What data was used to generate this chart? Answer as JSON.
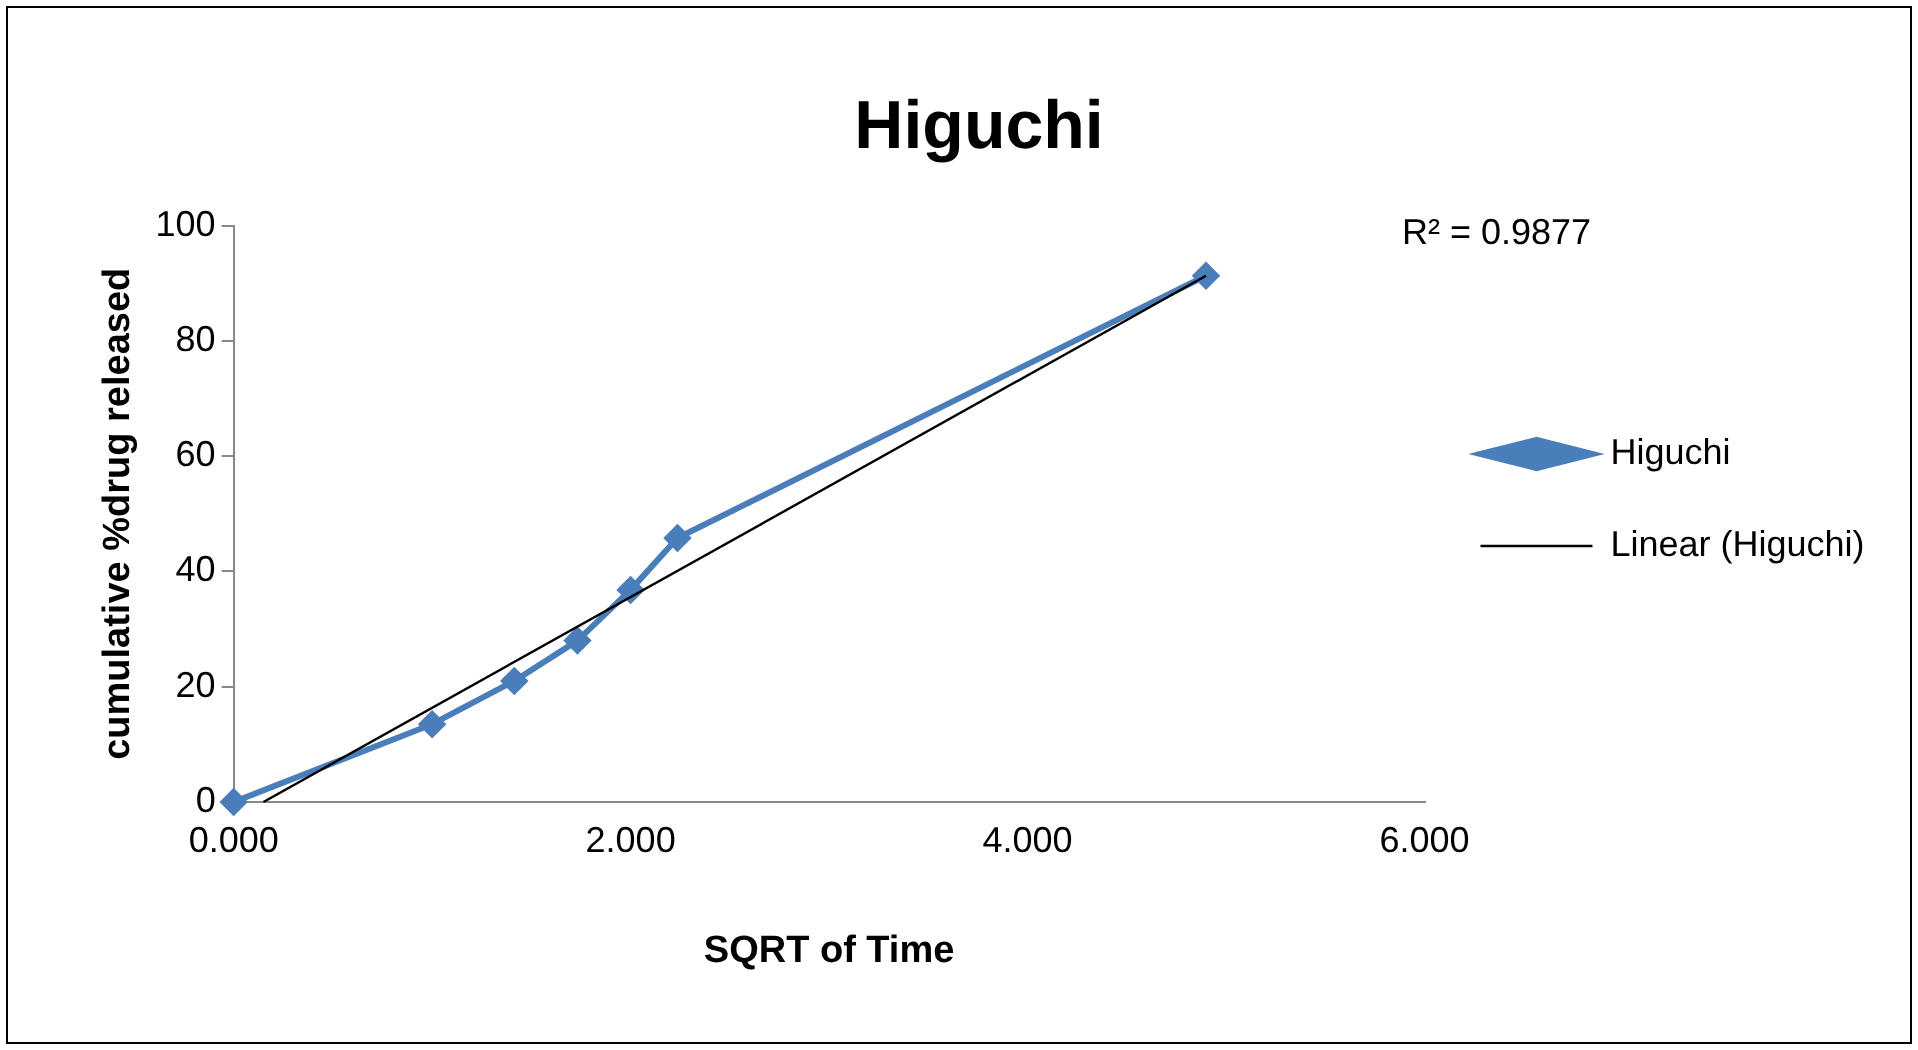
{
  "chart_data": {
    "type": "line",
    "title": "Higuchi",
    "xlabel": "SQRT of Time",
    "ylabel": "cumulative %drug released",
    "x": [
      0,
      1,
      1.414,
      1.732,
      2,
      2.236,
      4.899
    ],
    "series": [
      {
        "name": "Higuchi",
        "color": "#4a7ebb",
        "values": [
          0,
          13.5,
          21,
          28,
          36.8,
          45.8,
          91.3
        ],
        "marker": "diamond",
        "line_style": "solid"
      },
      {
        "name": "Linear (Higuchi)",
        "type": "line",
        "color": "#000000",
        "x": [
          0.15,
          4.899
        ],
        "values": [
          0,
          91.3
        ],
        "marker": "none",
        "line_style": "solid"
      }
    ],
    "xlim": [
      0,
      6
    ],
    "xticks": [
      {
        "value": 0,
        "label": "0.000"
      },
      {
        "value": 2,
        "label": "2.000"
      },
      {
        "value": 4,
        "label": "4.000"
      },
      {
        "value": 6,
        "label": "6.000"
      }
    ],
    "ylim": [
      0,
      100
    ],
    "yticks": [
      0,
      20,
      40,
      60,
      80,
      100
    ],
    "grid": false,
    "legend": "right",
    "annotations": [
      "R² = 0.9877"
    ]
  }
}
